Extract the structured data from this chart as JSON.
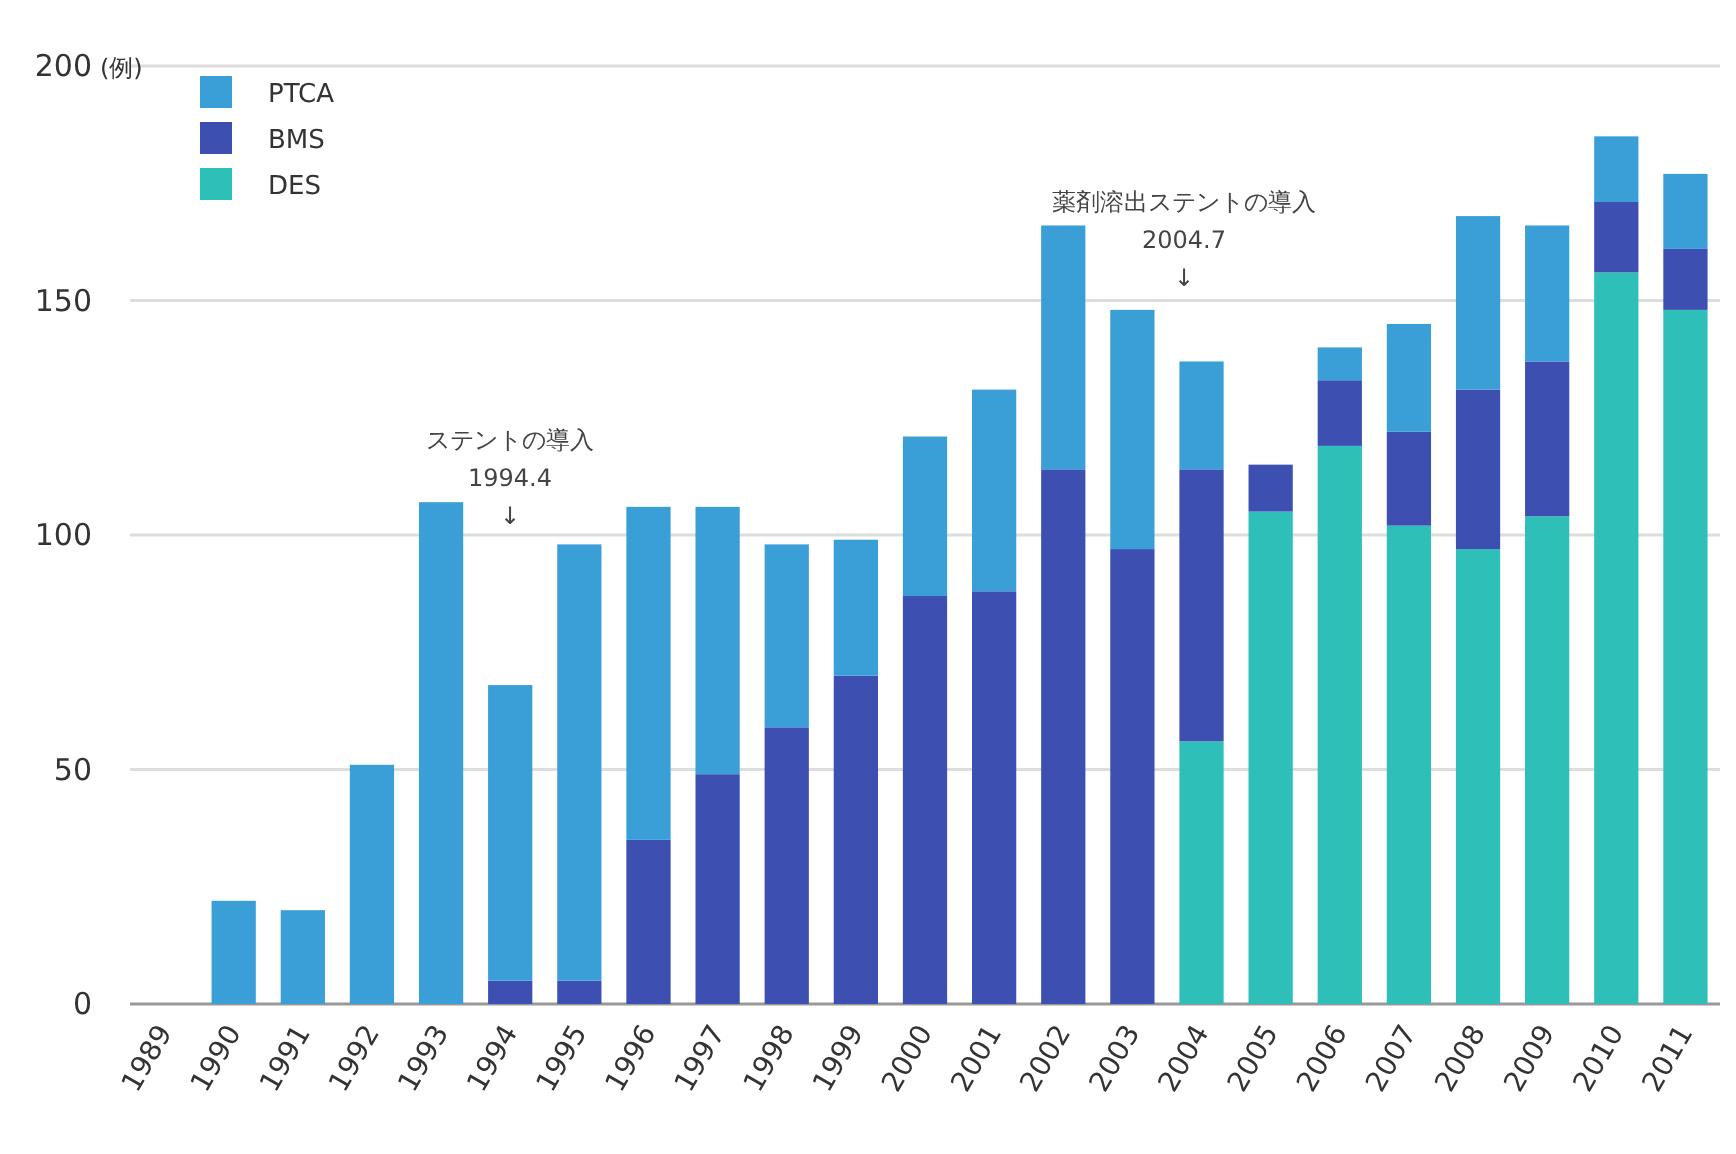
{
  "chart_data": {
    "type": "bar",
    "stacked": true,
    "ylabel": "(例)",
    "legend": "top left",
    "grid": "y",
    "categories": [
      "1989",
      "1990",
      "1991",
      "1992",
      "1993",
      "1994",
      "1995",
      "1996",
      "1997",
      "1998",
      "1999",
      "2000",
      "2001",
      "2002",
      "2003",
      "2004",
      "2005",
      "2006",
      "2007",
      "2008",
      "2009",
      "2010",
      "2011"
    ],
    "ylim": [
      0,
      200
    ],
    "yticks": [
      0,
      50,
      100,
      150,
      200
    ],
    "series": [
      {
        "name": "DES",
        "color": "#2ebfb8",
        "values": [
          null,
          null,
          null,
          null,
          null,
          null,
          null,
          null,
          null,
          null,
          null,
          null,
          null,
          null,
          null,
          56,
          105,
          119,
          102,
          97,
          104,
          156,
          148
        ]
      },
      {
        "name": "BMS",
        "color": "#3d4fb0",
        "values": [
          null,
          null,
          null,
          null,
          null,
          5,
          5,
          35,
          49,
          59,
          70,
          87,
          88,
          114,
          97,
          58,
          10,
          14,
          20,
          34,
          33,
          15,
          13
        ]
      },
      {
        "name": "PTCA",
        "color": "#3a9fd6",
        "values": [
          null,
          22,
          20,
          51,
          107,
          63,
          93,
          71,
          57,
          39,
          29,
          34,
          43,
          52,
          51,
          23,
          null,
          7,
          23,
          37,
          29,
          14,
          16
        ]
      }
    ],
    "annotations": [
      "ステントの導入\n1994.4\n↓",
      "薬剤溶出ステントの導入\n2004.7\n↓"
    ]
  }
}
